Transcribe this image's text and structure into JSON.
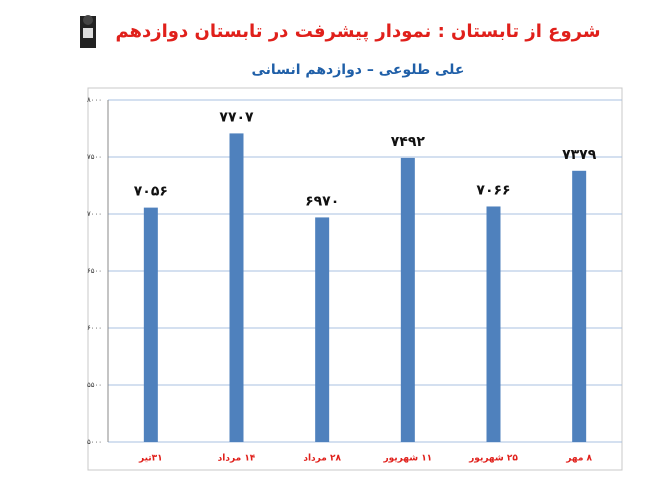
{
  "chart_data": {
    "type": "bar",
    "title": "شروع از تابستان : نمودار پیشرفت در تابستان دوازدهم",
    "subtitle": "علی طلوعی – دوازدهم انسانی",
    "categories": [
      "۳۱تیر",
      "۱۴ مرداد",
      "۲۸ مرداد",
      "۱۱ شهریور",
      "۲۵ شهریور",
      "۸ مهر"
    ],
    "values": [
      7056,
      7707,
      6970,
      7492,
      7066,
      7379
    ],
    "value_labels": [
      "۷۰۵۶",
      "۷۷۰۷",
      "۶۹۷۰",
      "۷۴۹۲",
      "۷۰۶۶",
      "۷۳۷۹"
    ],
    "color": "#4f81bd",
    "ylim": [
      5000,
      8000
    ],
    "yticks": [
      {
        "value": 5000,
        "label": "۵۰۰۰"
      },
      {
        "value": 5500,
        "label": "۵۵۰۰"
      },
      {
        "value": 6000,
        "label": "۶۰۰۰"
      },
      {
        "value": 6500,
        "label": "۶۵۰۰"
      },
      {
        "value": 7000,
        "label": "۷۰۰۰"
      },
      {
        "value": 7500,
        "label": "۷۵۰۰"
      },
      {
        "value": 8000,
        "label": "۸۰۰۰"
      }
    ],
    "grid": true
  }
}
